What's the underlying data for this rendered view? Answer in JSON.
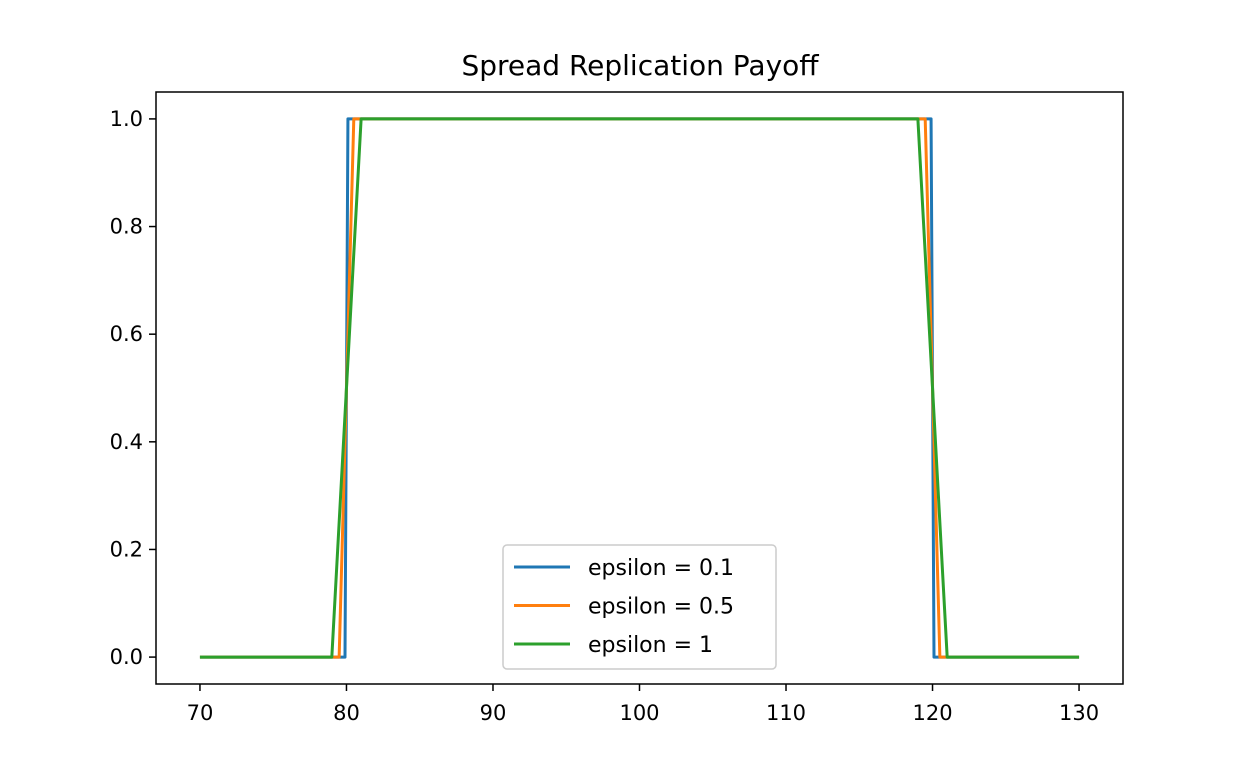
{
  "chart_data": {
    "type": "line",
    "title": "Spread Replication Payoff",
    "xlabel": "",
    "ylabel": "",
    "xlim": [
      67,
      133
    ],
    "ylim": [
      -0.05,
      1.05
    ],
    "xticks": [
      70,
      80,
      90,
      100,
      110,
      120,
      130
    ],
    "yticks": [
      0.0,
      0.2,
      0.4,
      0.6,
      0.8,
      1.0
    ],
    "xtick_labels": [
      "70",
      "80",
      "90",
      "100",
      "110",
      "120",
      "130"
    ],
    "ytick_labels": [
      "0.0",
      "0.2",
      "0.4",
      "0.6",
      "0.8",
      "1.0"
    ],
    "grid": false,
    "legend_position": "bottom-center",
    "series": [
      {
        "name": "epsilon = 0.1",
        "color": "#1f77b4",
        "x": [
          70,
          79.9,
          80.1,
          119.9,
          120.1,
          130
        ],
        "y": [
          0,
          0,
          1,
          1,
          0,
          0
        ]
      },
      {
        "name": "epsilon = 0.5",
        "color": "#ff7f0e",
        "x": [
          70,
          79.5,
          80.5,
          119.5,
          120.5,
          130
        ],
        "y": [
          0,
          0,
          1,
          1,
          0,
          0
        ]
      },
      {
        "name": "epsilon = 1",
        "color": "#2ca02c",
        "x": [
          70,
          79,
          81,
          119,
          121,
          130
        ],
        "y": [
          0,
          0,
          1,
          1,
          0,
          0
        ]
      }
    ]
  }
}
